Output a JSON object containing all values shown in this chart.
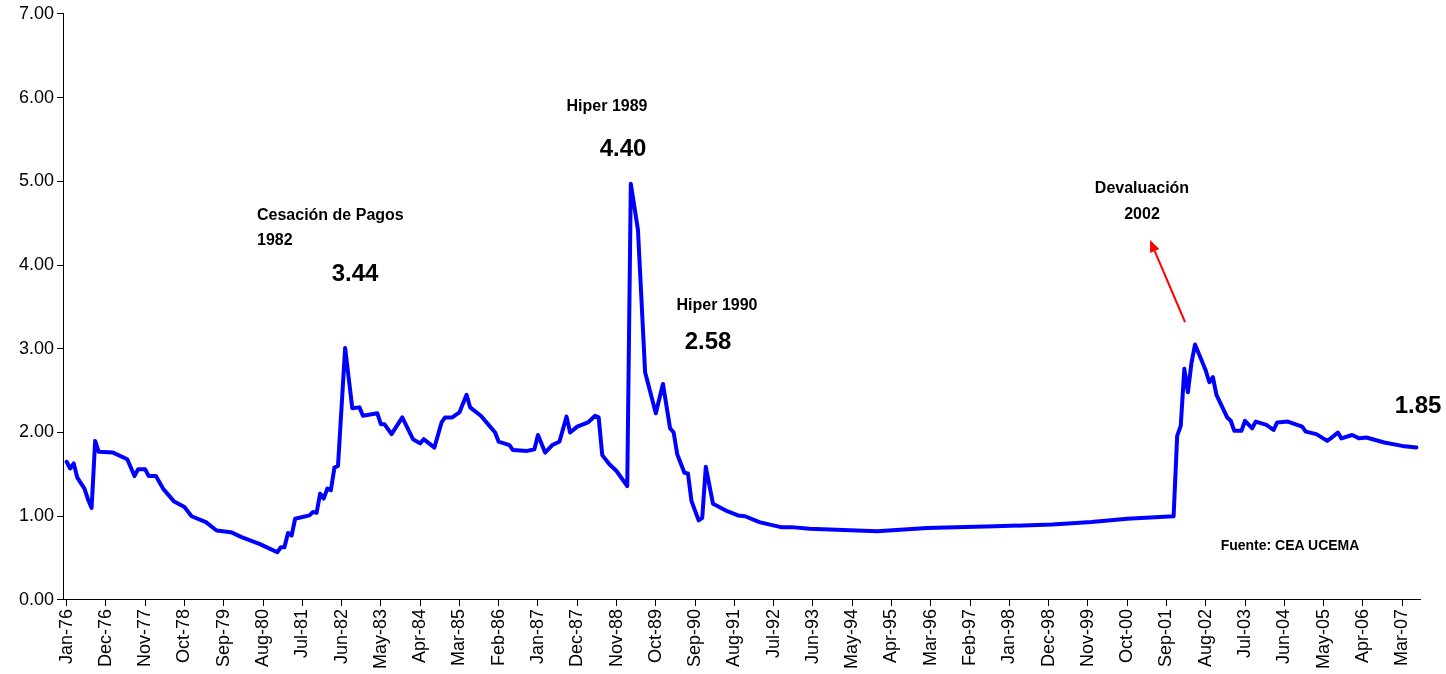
{
  "chart_data": {
    "type": "line",
    "x": [
      "1976-01",
      "1976-02",
      "1976-03",
      "1976-04",
      "1976-06",
      "1976-07",
      "1976-08",
      "1976-09",
      "1976-10",
      "1977-02",
      "1977-06",
      "1977-08",
      "1977-09",
      "1977-11",
      "1977-12",
      "1978-02",
      "1978-04",
      "1978-07",
      "1978-10",
      "1978-12",
      "1979-04",
      "1979-07",
      "1979-11",
      "1980-02",
      "1980-07",
      "1980-10",
      "1980-12",
      "1981-01",
      "1981-02",
      "1981-03",
      "1981-04",
      "1981-05",
      "1981-09",
      "1981-10",
      "1981-11",
      "1981-12",
      "1982-01",
      "1982-02",
      "1982-03",
      "1982-04",
      "1982-05",
      "1982-07",
      "1982-09",
      "1982-11",
      "1982-12",
      "1983-04",
      "1983-05",
      "1983-06",
      "1983-08",
      "1983-11",
      "1984-02",
      "1984-04",
      "1984-05",
      "1984-08",
      "1984-10",
      "1984-11",
      "1985-01",
      "1985-03",
      "1985-05",
      "1985-06",
      "1985-09",
      "1985-11",
      "1986-01",
      "1986-02",
      "1986-05",
      "1986-06",
      "1986-10",
      "1986-12",
      "1987-01",
      "1987-03",
      "1987-05",
      "1987-07",
      "1987-09",
      "1987-10",
      "1987-12",
      "1988-03",
      "1988-05",
      "1988-06",
      "1988-07",
      "1988-09",
      "1988-11",
      "1989-02",
      "1989-03",
      "1989-05",
      "1989-07",
      "1989-10",
      "1989-12",
      "1990-02",
      "1990-03",
      "1990-04",
      "1990-06",
      "1990-07",
      "1990-08",
      "1990-10",
      "1990-11",
      "1990-12",
      "1991-02",
      "1991-06",
      "1991-09",
      "1991-11",
      "1992-03",
      "1992-09",
      "1992-12",
      "1993-05",
      "1994-12",
      "1996-02",
      "1997-09",
      "1999-01",
      "1999-12",
      "2000-10",
      "2001-11",
      "2001-12",
      "2002-01",
      "2002-02",
      "2002-03",
      "2002-04",
      "2002-05",
      "2002-08",
      "2002-09",
      "2002-10",
      "2002-11",
      "2003-02",
      "2003-03",
      "2003-04",
      "2003-06",
      "2003-07",
      "2003-09",
      "2003-10",
      "2004-01",
      "2004-03",
      "2004-04",
      "2004-07",
      "2004-11",
      "2004-12",
      "2005-03",
      "2005-06",
      "2005-07",
      "2005-09",
      "2005-10",
      "2006-01",
      "2006-03",
      "2006-05",
      "2006-10",
      "2007-03",
      "2007-07"
    ],
    "series": [
      {
        "color": "#0000ff",
        "values": [
          1.65,
          1.57,
          1.63,
          1.46,
          1.33,
          1.2,
          1.1,
          1.9,
          1.77,
          1.76,
          1.68,
          1.48,
          1.56,
          1.56,
          1.48,
          1.48,
          1.33,
          1.18,
          1.11,
          1.0,
          0.93,
          0.83,
          0.81,
          0.75,
          0.67,
          0.61,
          0.57,
          0.63,
          0.63,
          0.8,
          0.77,
          0.97,
          1.01,
          1.05,
          1.04,
          1.27,
          1.21,
          1.33,
          1.31,
          1.58,
          1.6,
          3.01,
          2.29,
          2.3,
          2.2,
          2.23,
          2.1,
          2.1,
          1.98,
          2.18,
          1.92,
          1.87,
          1.92,
          1.82,
          2.12,
          2.18,
          2.18,
          2.24,
          2.45,
          2.3,
          2.2,
          2.1,
          2.0,
          1.89,
          1.85,
          1.79,
          1.78,
          1.8,
          1.97,
          1.76,
          1.85,
          1.89,
          2.19,
          2.0,
          2.07,
          2.12,
          2.2,
          2.18,
          1.73,
          1.62,
          1.54,
          1.36,
          4.97,
          4.42,
          2.72,
          2.23,
          2.58,
          2.05,
          2.0,
          1.74,
          1.52,
          1.51,
          1.18,
          0.95,
          0.98,
          1.59,
          1.15,
          1.06,
          1.01,
          1.0,
          0.93,
          0.87,
          0.87,
          0.85,
          0.82,
          0.86,
          0.88,
          0.9,
          0.93,
          0.97,
          1.0,
          1.96,
          2.08,
          2.76,
          2.48,
          2.83,
          3.05,
          2.74,
          2.6,
          2.66,
          2.45,
          2.18,
          2.14,
          2.02,
          2.02,
          2.14,
          2.05,
          2.13,
          2.09,
          2.03,
          2.12,
          2.13,
          2.07,
          2.01,
          1.98,
          1.9,
          1.93,
          2.0,
          1.93,
          1.97,
          1.93,
          1.94,
          1.88,
          1.84,
          1.82
        ]
      }
    ],
    "xlim": [
      "1975-12",
      "2007-08"
    ],
    "xticks": [
      {
        "value": "1976-01",
        "label": "Jan-76"
      },
      {
        "value": "1976-12",
        "label": "Dec-76"
      },
      {
        "value": "1977-11",
        "label": "Nov-77"
      },
      {
        "value": "1978-10",
        "label": "Oct-78"
      },
      {
        "value": "1979-09",
        "label": "Sep-79"
      },
      {
        "value": "1980-08",
        "label": "Aug-80"
      },
      {
        "value": "1981-07",
        "label": "Jul-81"
      },
      {
        "value": "1982-06",
        "label": "Jun-82"
      },
      {
        "value": "1983-05",
        "label": "May-83"
      },
      {
        "value": "1984-04",
        "label": "Apr-84"
      },
      {
        "value": "1985-03",
        "label": "Mar-85"
      },
      {
        "value": "1986-02",
        "label": "Feb-86"
      },
      {
        "value": "1987-01",
        "label": "Jan-87"
      },
      {
        "value": "1987-12",
        "label": "Dec-87"
      },
      {
        "value": "1988-11",
        "label": "Nov-88"
      },
      {
        "value": "1989-10",
        "label": "Oct-89"
      },
      {
        "value": "1990-09",
        "label": "Sep-90"
      },
      {
        "value": "1991-08",
        "label": "Aug-91"
      },
      {
        "value": "1992-07",
        "label": "Jul-92"
      },
      {
        "value": "1993-06",
        "label": "Jun-93"
      },
      {
        "value": "1994-05",
        "label": "May-94"
      },
      {
        "value": "1995-04",
        "label": "Apr-95"
      },
      {
        "value": "1996-03",
        "label": "Mar-96"
      },
      {
        "value": "1997-02",
        "label": "Feb-97"
      },
      {
        "value": "1998-01",
        "label": "Jan-98"
      },
      {
        "value": "1998-12",
        "label": "Dec-98"
      },
      {
        "value": "1999-11",
        "label": "Nov-99"
      },
      {
        "value": "2000-10",
        "label": "Oct-00"
      },
      {
        "value": "2001-09",
        "label": "Sep-01"
      },
      {
        "value": "2002-08",
        "label": "Aug-02"
      },
      {
        "value": "2003-07",
        "label": "Jul-03"
      },
      {
        "value": "2004-06",
        "label": "Jun-04"
      },
      {
        "value": "2005-05",
        "label": "May-05"
      },
      {
        "value": "2006-04",
        "label": "Apr-06"
      },
      {
        "value": "2007-03",
        "label": "Mar-07"
      }
    ],
    "ylim": [
      0,
      7
    ],
    "yticks": [
      {
        "value": 0,
        "label": "0.00"
      },
      {
        "value": 1,
        "label": "1.00"
      },
      {
        "value": 2,
        "label": "2.00"
      },
      {
        "value": 3,
        "label": "3.00"
      },
      {
        "value": 4,
        "label": "4.00"
      },
      {
        "value": 5,
        "label": "5.00"
      },
      {
        "value": 6,
        "label": "6.00"
      },
      {
        "value": 7,
        "label": "7.00"
      }
    ],
    "grid": false,
    "legend": false,
    "line_style": "solid",
    "annotations": [
      "Cesación de Pagos",
      "1982",
      "3.44",
      "Hiper 1989",
      "4.40",
      "Hiper 1990",
      "2.58",
      "Devaluación",
      "2002",
      "1.85",
      "Fuente: CEA UCEMA"
    ]
  }
}
